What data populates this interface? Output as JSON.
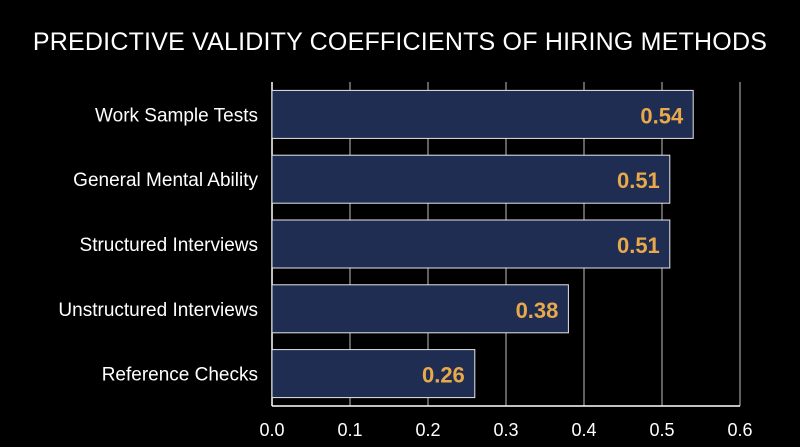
{
  "chart_data": {
    "type": "bar",
    "orientation": "horizontal",
    "title": "PREDICTIVE VALIDITY COEFFICIENTS OF HIRING METHODS",
    "categories": [
      "Work Sample Tests",
      "General Mental Ability",
      "Structured Interviews",
      "Unstructured Interviews",
      "Reference Checks"
    ],
    "values": [
      0.54,
      0.51,
      0.51,
      0.38,
      0.26
    ],
    "value_labels": [
      "0.54",
      "0.51",
      "0.51",
      "0.38",
      "0.26"
    ],
    "xticks": [
      "0.0",
      "0.1",
      "0.2",
      "0.3",
      "0.4",
      "0.5",
      "0.6"
    ],
    "xlim": [
      0,
      0.6
    ],
    "grid": true,
    "colors": {
      "background": "#000000",
      "bar": "#1f2d52",
      "bar_border": "#e6e6e6",
      "value_label": "#e8a94a",
      "text": "#ffffff",
      "grid": "#bfbfbf"
    }
  }
}
